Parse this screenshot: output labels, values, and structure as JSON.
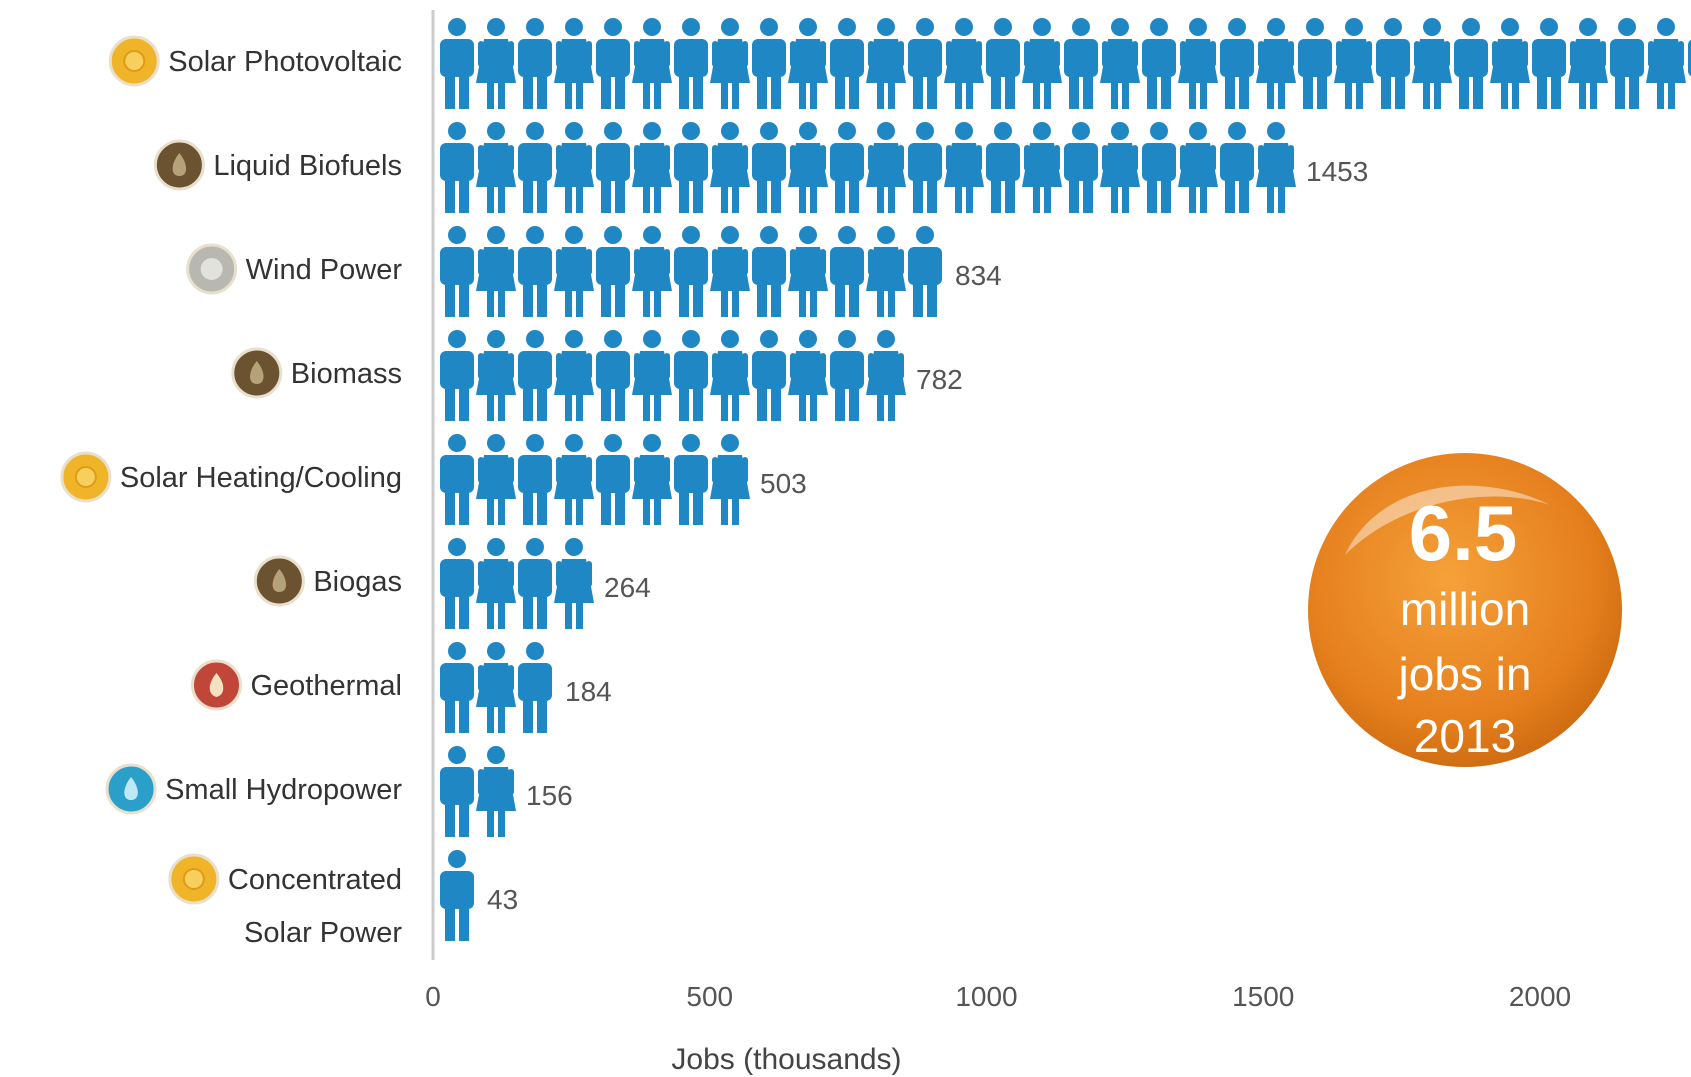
{
  "chart_data": {
    "type": "bar",
    "orientation": "horizontal",
    "pictogram": "person",
    "categories": [
      "Solar Photovoltaic",
      "Liquid Biofuels",
      "Wind Power",
      "Biomass",
      "Solar Heating/Cooling",
      "Biogas",
      "Geothermal",
      "Small Hydropower",
      "Concentrated Solar Power"
    ],
    "category_lines": [
      [
        "Solar Photovoltaic"
      ],
      [
        "Liquid Biofuels"
      ],
      [
        "Wind Power"
      ],
      [
        "Biomass"
      ],
      [
        "Solar Heating/Cooling"
      ],
      [
        "Biogas"
      ],
      [
        "Geothermal"
      ],
      [
        "Small Hydropower"
      ],
      [
        "Concentrated",
        "Solar Power"
      ]
    ],
    "values": [
      2273,
      1453,
      834,
      782,
      503,
      264,
      184,
      156,
      43
    ],
    "icons": [
      "sun",
      "droplet",
      "wind",
      "droplet",
      "sun",
      "droplet",
      "flame",
      "water-drop",
      "sun"
    ],
    "icon_colors": [
      "#f0b429",
      "#6b5230",
      "#b8b8b0",
      "#6b5230",
      "#f0b429",
      "#6b5230",
      "#c0463a",
      "#2a9fc9",
      "#f0b429"
    ],
    "xlabel": "Jobs (thousands)",
    "xticks": [
      0,
      500,
      1000,
      1500,
      2000
    ],
    "xlim": [
      0,
      2273
    ],
    "bar_color": "#1f87c4",
    "grid": false
  },
  "badge": {
    "value": "6.5",
    "lines": [
      "million",
      "jobs in",
      "2013"
    ],
    "color": "#e57f1d"
  }
}
